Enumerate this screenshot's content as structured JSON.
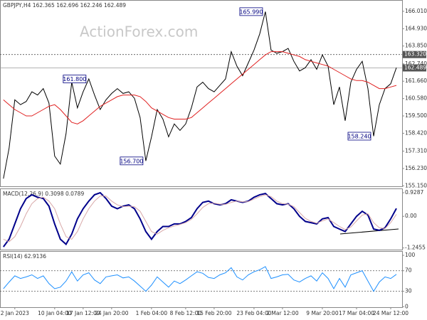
{
  "chart_data": [
    {
      "type": "line",
      "title": "GBPJPY,H4 162.365 162.696 162.246 162.489",
      "watermark": "ActionForex.com",
      "xlim": [
        -0.6,
        70
      ],
      "ylim": [
        155.12,
        166.67
      ],
      "yticks": [
        {
          "value": 166.01,
          "label": "166.010"
        },
        {
          "value": 164.93,
          "label": "164.930"
        },
        {
          "value": 163.85,
          "label": "163.850"
        },
        {
          "value": 162.74,
          "label": "162.740"
        },
        {
          "value": 161.66,
          "label": "161.660"
        },
        {
          "value": 160.58,
          "label": "160.580"
        },
        {
          "value": 159.5,
          "label": "159.500"
        },
        {
          "value": 158.42,
          "label": "158.420"
        },
        {
          "value": 157.31,
          "label": "157.310"
        },
        {
          "value": 156.23,
          "label": "156.230"
        },
        {
          "value": 155.15,
          "label": "155.150"
        }
      ],
      "levels": [
        {
          "value": 163.32,
          "label": "163.320",
          "style": "dotted"
        },
        {
          "value": 162.489,
          "label": "162.489",
          "style": "solid"
        }
      ],
      "annotations": [
        {
          "label": "165.990",
          "value": 165.99,
          "x": 46
        },
        {
          "label": "161.800",
          "value": 161.8,
          "x": 15
        },
        {
          "label": "156.700",
          "value": 156.7,
          "x": 25
        },
        {
          "label": "158.240",
          "value": 158.24,
          "x": 65
        }
      ],
      "series": [
        {
          "name": "GBPJPY",
          "color": "#000000",
          "width": 1,
          "values": [
            155.6,
            157.5,
            160.5,
            160.2,
            160.4,
            161.0,
            160.8,
            161.2,
            160.3,
            157.0,
            156.5,
            158.4,
            161.6,
            160.0,
            161.0,
            161.8,
            160.8,
            159.9,
            160.5,
            160.9,
            161.2,
            160.9,
            161.0,
            160.6,
            159.4,
            156.7,
            158.2,
            159.9,
            159.3,
            158.2,
            159.0,
            158.6,
            159.0,
            160.0,
            161.3,
            161.6,
            161.2,
            161.0,
            161.4,
            161.8,
            163.5,
            162.6,
            162.0,
            162.8,
            163.6,
            164.6,
            165.99,
            163.6,
            163.4,
            163.5,
            163.7,
            162.9,
            162.3,
            162.5,
            163.0,
            162.4,
            163.3,
            162.6,
            160.2,
            161.3,
            159.2,
            161.6,
            162.4,
            162.9,
            161.2,
            158.24,
            160.2,
            161.2,
            161.5,
            162.5
          ]
        },
        {
          "name": "MA",
          "color": "#e02020",
          "width": 1,
          "values": [
            160.5,
            160.2,
            159.9,
            159.7,
            159.5,
            159.5,
            159.7,
            159.9,
            160.1,
            160.2,
            159.9,
            159.5,
            159.1,
            159.0,
            159.2,
            159.5,
            159.8,
            160.1,
            160.3,
            160.5,
            160.7,
            160.8,
            160.8,
            160.8,
            160.7,
            160.4,
            160.0,
            159.8,
            159.6,
            159.4,
            159.3,
            159.3,
            159.3,
            159.4,
            159.7,
            160.0,
            160.3,
            160.6,
            160.9,
            161.2,
            161.5,
            161.8,
            162.1,
            162.4,
            162.7,
            163.0,
            163.3,
            163.5,
            163.5,
            163.5,
            163.4,
            163.3,
            163.2,
            163.0,
            162.9,
            162.8,
            162.7,
            162.6,
            162.4,
            162.2,
            162.0,
            161.8,
            161.7,
            161.7,
            161.6,
            161.4,
            161.2,
            161.2,
            161.3,
            161.4
          ]
        }
      ]
    },
    {
      "type": "line",
      "title": "MACD(12,26,9) 0.3098 0.0789",
      "xlim": [
        -0.6,
        70
      ],
      "ylim": [
        -1.31,
        1.07
      ],
      "yticks": [
        0.9287,
        {
          "value": 0,
          "label": "0.00"
        },
        -1.2455
      ],
      "series": [
        {
          "name": "MACD",
          "color": "#00008b",
          "width": 2,
          "values": [
            -1.2,
            -0.9,
            -0.3,
            0.3,
            0.7,
            0.85,
            0.75,
            0.7,
            0.4,
            -0.3,
            -0.9,
            -1.1,
            -0.7,
            -0.1,
            0.3,
            0.6,
            0.85,
            0.93,
            0.7,
            0.4,
            0.3,
            0.4,
            0.45,
            0.3,
            -0.1,
            -0.6,
            -0.9,
            -0.6,
            -0.4,
            -0.4,
            -0.3,
            -0.3,
            -0.2,
            -0.05,
            0.3,
            0.55,
            0.6,
            0.5,
            0.45,
            0.5,
            0.65,
            0.6,
            0.55,
            0.6,
            0.75,
            0.85,
            0.9,
            0.7,
            0.5,
            0.45,
            0.5,
            0.3,
            0.0,
            -0.2,
            -0.25,
            -0.3,
            -0.1,
            -0.05,
            -0.4,
            -0.5,
            -0.6,
            -0.3,
            0.0,
            0.2,
            0.05,
            -0.5,
            -0.55,
            -0.45,
            -0.1,
            0.3098
          ]
        },
        {
          "name": "Signal",
          "color": "#d8a8a8",
          "width": 1,
          "values": [
            -0.9,
            -1.0,
            -0.8,
            -0.4,
            0.1,
            0.5,
            0.7,
            0.75,
            0.6,
            0.3,
            -0.3,
            -0.8,
            -0.9,
            -0.6,
            -0.1,
            0.3,
            0.6,
            0.8,
            0.8,
            0.6,
            0.45,
            0.38,
            0.4,
            0.38,
            0.2,
            -0.2,
            -0.6,
            -0.7,
            -0.55,
            -0.45,
            -0.38,
            -0.32,
            -0.25,
            -0.12,
            0.1,
            0.35,
            0.5,
            0.52,
            0.48,
            0.47,
            0.55,
            0.6,
            0.57,
            0.58,
            0.68,
            0.78,
            0.85,
            0.78,
            0.6,
            0.5,
            0.48,
            0.38,
            0.15,
            -0.08,
            -0.2,
            -0.27,
            -0.18,
            -0.1,
            -0.25,
            -0.4,
            -0.52,
            -0.42,
            -0.18,
            0.05,
            0.1,
            -0.25,
            -0.45,
            -0.48,
            -0.25,
            0.0789
          ]
        }
      ]
    },
    {
      "type": "line",
      "title": "RSI(14) 62.9136",
      "xlim": [
        -0.6,
        70
      ],
      "ylim": [
        -1,
        107
      ],
      "yticks": [
        100,
        70,
        30,
        0
      ],
      "levels": [
        {
          "value": 70,
          "style": "dotted"
        },
        {
          "value": 30,
          "style": "dotted"
        }
      ],
      "xticks": [
        {
          "value": 2,
          "label": "2 Jan 2023"
        },
        {
          "value": 9,
          "label": "10 Jan 04:00"
        },
        {
          "value": 14,
          "label": "17 Jan 12:00"
        },
        {
          "value": 19,
          "label": "24 Jan 20:00"
        },
        {
          "value": 26,
          "label": "1 Feb 04:00"
        },
        {
          "value": 32,
          "label": "8 Feb 12:00"
        },
        {
          "value": 37,
          "label": "15 Feb 20:00"
        },
        {
          "value": 44,
          "label": "23 Feb 04:00"
        },
        {
          "value": 49,
          "label": "2 Mar 12:00"
        },
        {
          "value": 56,
          "label": "9 Mar 20:00"
        },
        {
          "value": 62,
          "label": "17 Mar 04:00"
        },
        {
          "value": 68,
          "label": "24 Mar 12:00"
        }
      ],
      "series": [
        {
          "name": "RSI",
          "color": "#1e90ff",
          "width": 1,
          "values": [
            35,
            48,
            60,
            55,
            58,
            62,
            55,
            60,
            45,
            35,
            38,
            50,
            68,
            50,
            62,
            66,
            52,
            45,
            58,
            60,
            62,
            56,
            58,
            50,
            40,
            30,
            42,
            58,
            48,
            38,
            50,
            45,
            52,
            60,
            68,
            65,
            57,
            55,
            62,
            66,
            76,
            58,
            52,
            62,
            68,
            72,
            78,
            55,
            58,
            62,
            63,
            52,
            48,
            55,
            60,
            50,
            66,
            55,
            35,
            55,
            38,
            62,
            66,
            70,
            50,
            30,
            48,
            58,
            55,
            62.9136
          ]
        }
      ]
    }
  ]
}
